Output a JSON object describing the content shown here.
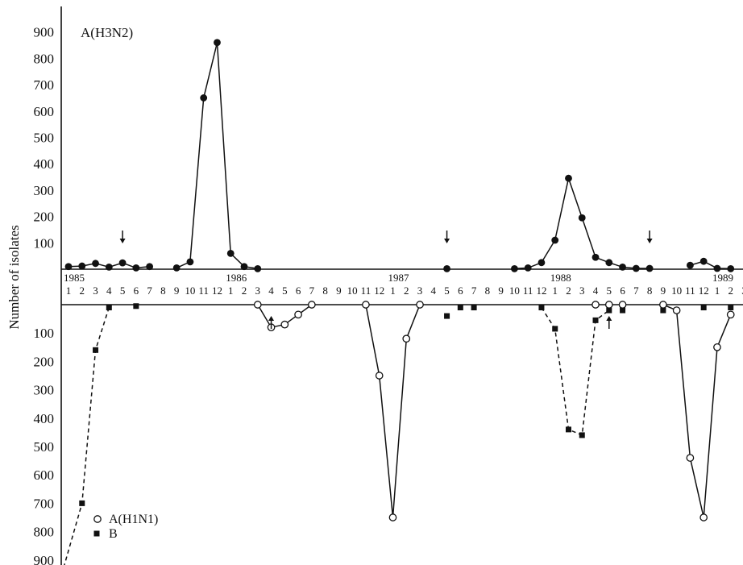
{
  "chart_data": {
    "type": "line",
    "title": "A(H3N2)",
    "ylabel": "Number of isolates",
    "xlabel": "",
    "upper_ylim": [
      0,
      900
    ],
    "lower_ylim": [
      0,
      900
    ],
    "y_ticks": [
      "100",
      "200",
      "300",
      "400",
      "500",
      "600",
      "700",
      "800",
      "900"
    ],
    "upper_y_ticks": [
      "900",
      "800",
      "700",
      "600",
      "500",
      "400",
      "300",
      "200",
      "100"
    ],
    "lower_y_ticks": [
      "100",
      "200",
      "300",
      "400",
      "500",
      "600",
      "700",
      "800",
      "900"
    ],
    "x_month_labels": [
      "1",
      "2",
      "3",
      "4",
      "5",
      "6",
      "7",
      "8",
      "9",
      "10",
      "11",
      "12",
      "1",
      "2",
      "3",
      "4",
      "5",
      "6",
      "7",
      "8",
      "9",
      "10",
      "11",
      "12",
      "1",
      "2",
      "3",
      "4",
      "5",
      "6",
      "7",
      "8",
      "9",
      "10",
      "11",
      "12",
      "1",
      "2",
      "3",
      "4",
      "5",
      "6",
      "7",
      "8",
      "9",
      "10",
      "11",
      "12",
      "1",
      "2",
      "3"
    ],
    "years": [
      {
        "label": "1985",
        "month_index": 0
      },
      {
        "label": "1986",
        "month_index": 12
      },
      {
        "label": "1987",
        "month_index": 24
      },
      {
        "label": "1988",
        "month_index": 36
      },
      {
        "label": "1989",
        "month_index": 48
      }
    ],
    "legend": [
      {
        "label": "A(H1N1)",
        "marker": "open-circle"
      },
      {
        "label": "B",
        "marker": "filled-square"
      }
    ],
    "x_note": "x values are months counted from 1985 month 1 = 1",
    "series": [
      {
        "name": "A(H3N2)",
        "panel": "upper",
        "marker": "filled-circle",
        "line": "solid",
        "points": [
          {
            "x": 1,
            "y": 10
          },
          {
            "x": 2,
            "y": 12
          },
          {
            "x": 3,
            "y": 22
          },
          {
            "x": 4,
            "y": 8
          },
          {
            "x": 5,
            "y": 24
          },
          {
            "x": 6,
            "y": 5
          },
          {
            "x": 7,
            "y": 10
          },
          {
            "x": 9,
            "y": 5
          },
          {
            "x": 10,
            "y": 28
          },
          {
            "x": 11,
            "y": 650
          },
          {
            "x": 12,
            "y": 860
          },
          {
            "x": 13,
            "y": 60
          },
          {
            "x": 14,
            "y": 10
          },
          {
            "x": 15,
            "y": 2
          },
          {
            "x": 29,
            "y": 2
          },
          {
            "x": 34,
            "y": 2
          },
          {
            "x": 35,
            "y": 5
          },
          {
            "x": 36,
            "y": 25
          },
          {
            "x": 37,
            "y": 110
          },
          {
            "x": 38,
            "y": 345
          },
          {
            "x": 39,
            "y": 195
          },
          {
            "x": 40,
            "y": 45
          },
          {
            "x": 41,
            "y": 25
          },
          {
            "x": 42,
            "y": 8
          },
          {
            "x": 43,
            "y": 3
          },
          {
            "x": 44,
            "y": 3
          },
          {
            "x": 47,
            "y": 15
          },
          {
            "x": 48,
            "y": 30
          },
          {
            "x": 49,
            "y": 3
          },
          {
            "x": 50,
            "y": 2
          }
        ],
        "segments": [
          [
            1,
            7
          ],
          [
            9,
            15
          ],
          [
            34,
            44
          ],
          [
            47,
            50
          ]
        ]
      },
      {
        "name": "A(H1N1)",
        "panel": "lower",
        "marker": "open-circle",
        "line": "solid",
        "points": [
          {
            "x": 15,
            "y": 0
          },
          {
            "x": 16,
            "y": 80
          },
          {
            "x": 17,
            "y": 70
          },
          {
            "x": 18,
            "y": 35
          },
          {
            "x": 19,
            "y": 0
          },
          {
            "x": 23,
            "y": 0
          },
          {
            "x": 24,
            "y": 250
          },
          {
            "x": 25,
            "y": 750
          },
          {
            "x": 26,
            "y": 120
          },
          {
            "x": 27,
            "y": 0
          },
          {
            "x": 40,
            "y": 0
          },
          {
            "x": 41,
            "y": 0
          },
          {
            "x": 42,
            "y": 0
          },
          {
            "x": 45,
            "y": 0
          },
          {
            "x": 46,
            "y": 20
          },
          {
            "x": 47,
            "y": 540
          },
          {
            "x": 48,
            "y": 750
          },
          {
            "x": 49,
            "y": 150
          },
          {
            "x": 50,
            "y": 35
          }
        ],
        "segments": [
          [
            15,
            19
          ],
          [
            23,
            27
          ],
          [
            45,
            50
          ]
        ]
      },
      {
        "name": "B",
        "panel": "lower",
        "marker": "filled-square",
        "line": "dashed",
        "points": [
          {
            "x": 0.2,
            "y": 1000
          },
          {
            "x": 2,
            "y": 700
          },
          {
            "x": 3,
            "y": 160
          },
          {
            "x": 4,
            "y": 10
          },
          {
            "x": 6,
            "y": 5
          },
          {
            "x": 29,
            "y": 40
          },
          {
            "x": 30,
            "y": 10
          },
          {
            "x": 31,
            "y": 10
          },
          {
            "x": 36,
            "y": 10
          },
          {
            "x": 37,
            "y": 85
          },
          {
            "x": 38,
            "y": 440
          },
          {
            "x": 39,
            "y": 460
          },
          {
            "x": 40,
            "y": 55
          },
          {
            "x": 41,
            "y": 20
          },
          {
            "x": 42,
            "y": 20
          },
          {
            "x": 45,
            "y": 20
          },
          {
            "x": 48,
            "y": 10
          },
          {
            "x": 50,
            "y": 10
          }
        ],
        "segments": [
          [
            0.2,
            4
          ],
          [
            36,
            41
          ]
        ]
      }
    ],
    "arrows": [
      {
        "x": 5,
        "panel": "upper",
        "direction": "down"
      },
      {
        "x": 29,
        "panel": "upper",
        "direction": "down"
      },
      {
        "x": 44,
        "panel": "upper",
        "direction": "down"
      },
      {
        "x": 16,
        "panel": "lower",
        "direction": "up"
      },
      {
        "x": 41,
        "panel": "lower",
        "direction": "up"
      }
    ]
  }
}
